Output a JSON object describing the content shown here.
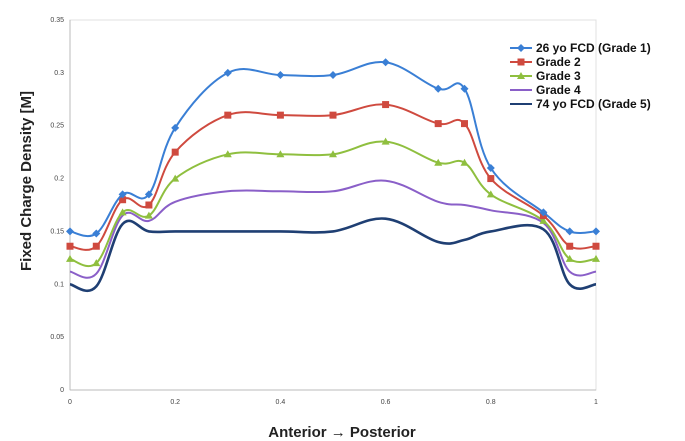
{
  "chart_data": {
    "type": "line",
    "xlabel": "Anterior → Posterior",
    "ylabel": "Fixed Charge Density [M]",
    "xlim": [
      0,
      1
    ],
    "ylim": [
      0,
      0.35
    ],
    "x_ticks": [
      "0",
      "0.2",
      "0.4",
      "0.6",
      "0.8",
      "1"
    ],
    "y_ticks": [
      "0",
      "0.05",
      "0.1",
      "0.15",
      "0.2",
      "0.25",
      "0.3",
      "0.35"
    ],
    "grid": false,
    "legend_position": "top-right",
    "x": [
      0,
      0.05,
      0.1,
      0.15,
      0.2,
      0.3,
      0.4,
      0.5,
      0.6,
      0.7,
      0.75,
      0.8,
      0.9,
      0.95,
      1
    ],
    "series": [
      {
        "name": "26 yo FCD (Grade 1)",
        "color": "#3a7fd5",
        "marker": "diamond",
        "values": [
          0.15,
          0.148,
          0.185,
          0.185,
          0.248,
          0.3,
          0.298,
          0.298,
          0.31,
          0.285,
          0.285,
          0.21,
          0.168,
          0.15,
          0.15
        ]
      },
      {
        "name": "Grade 2",
        "color": "#cf4a3f",
        "marker": "square",
        "values": [
          0.136,
          0.136,
          0.18,
          0.175,
          0.225,
          0.26,
          0.26,
          0.26,
          0.27,
          0.252,
          0.252,
          0.2,
          0.165,
          0.136,
          0.136
        ]
      },
      {
        "name": "Grade 3",
        "color": "#8fbf3f",
        "marker": "triangle",
        "values": [
          0.124,
          0.12,
          0.168,
          0.165,
          0.2,
          0.223,
          0.223,
          0.223,
          0.235,
          0.215,
          0.215,
          0.185,
          0.16,
          0.124,
          0.124
        ]
      },
      {
        "name": "Grade 4",
        "color": "#8a5fc8",
        "marker": "none",
        "values": [
          0.112,
          0.11,
          0.165,
          0.16,
          0.178,
          0.188,
          0.188,
          0.188,
          0.198,
          0.178,
          0.175,
          0.17,
          0.158,
          0.112,
          0.112
        ]
      },
      {
        "name": "74 yo FCD (Grade 5)",
        "color": "#1f3f73",
        "marker": "none",
        "values": [
          0.1,
          0.098,
          0.157,
          0.15,
          0.15,
          0.15,
          0.15,
          0.15,
          0.162,
          0.14,
          0.142,
          0.15,
          0.152,
          0.1,
          0.1
        ]
      }
    ]
  }
}
